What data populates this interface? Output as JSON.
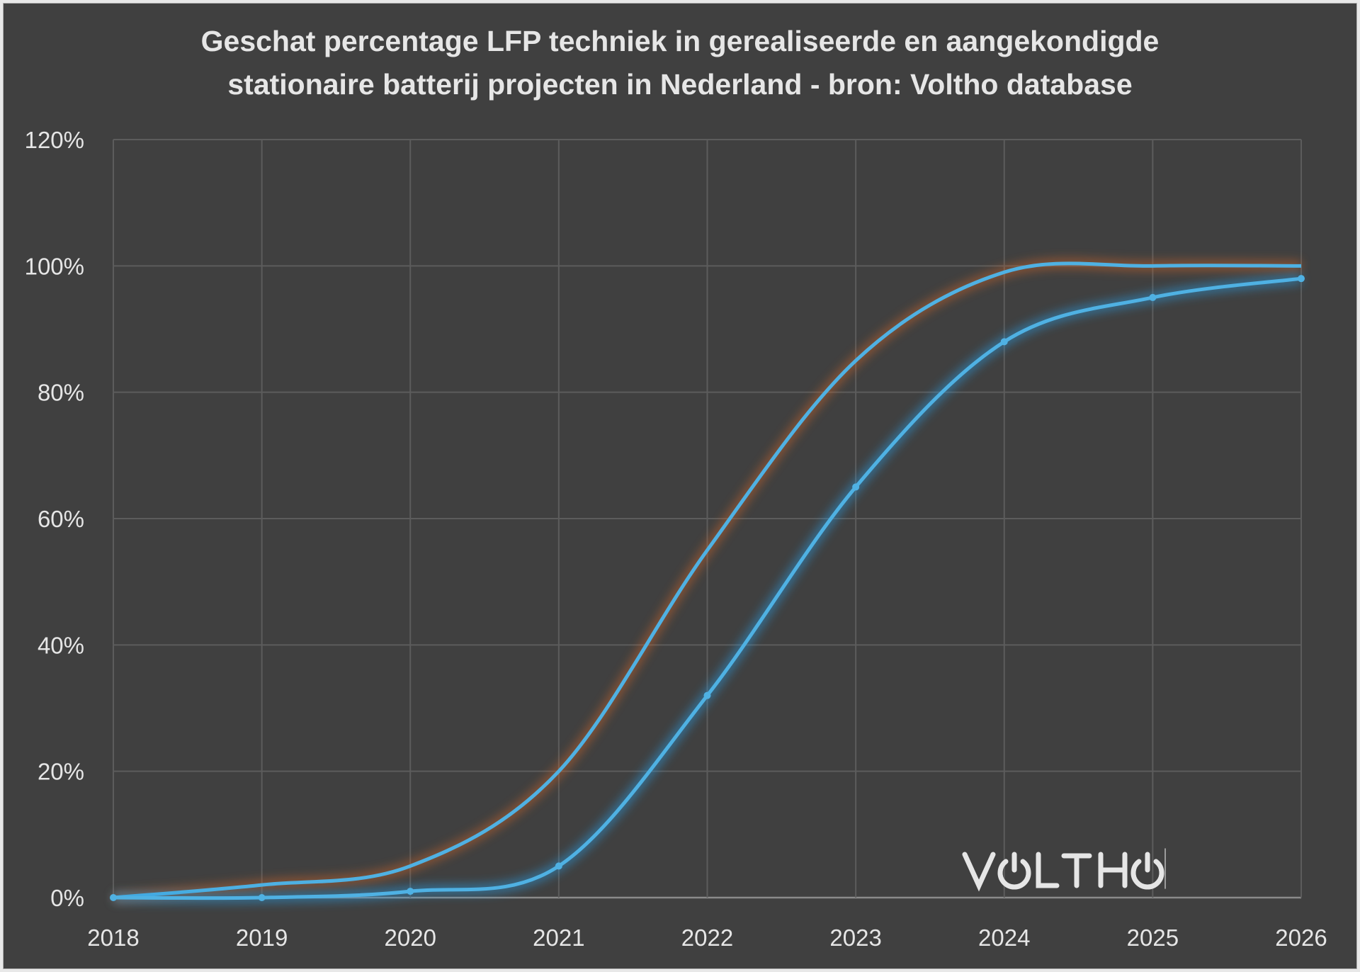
{
  "chart_data": {
    "type": "line",
    "title": [
      "Geschat percentage LFP techniek in gerealiseerde en aangekondigde",
      "stationaire batterij projecten in Nederland - bron: Voltho database"
    ],
    "xlabel": "",
    "ylabel": "",
    "x": [
      2018,
      2019,
      2020,
      2021,
      2022,
      2023,
      2024,
      2025,
      2026
    ],
    "x_tick_labels": [
      "2018",
      "2019",
      "2020",
      "2021",
      "2022",
      "2023",
      "2024",
      "2025",
      "2026"
    ],
    "y_tick_labels": [
      "0%",
      "20%",
      "40%",
      "60%",
      "80%",
      "100%",
      "120%"
    ],
    "ylim": [
      0,
      120
    ],
    "grid": true,
    "legend": "none",
    "series": [
      {
        "name": "upper",
        "color": "#4fb1e3",
        "glow": "#c8632a",
        "markers": false,
        "values": [
          0,
          2,
          5,
          20,
          55,
          85,
          99,
          100,
          100
        ]
      },
      {
        "name": "lower",
        "color": "#4fb1e3",
        "glow": "#2a9be0",
        "markers": true,
        "values": [
          0,
          0,
          1,
          5,
          32,
          65,
          88,
          95,
          98
        ]
      }
    ]
  },
  "logo": {
    "text": "VOLTHO"
  }
}
